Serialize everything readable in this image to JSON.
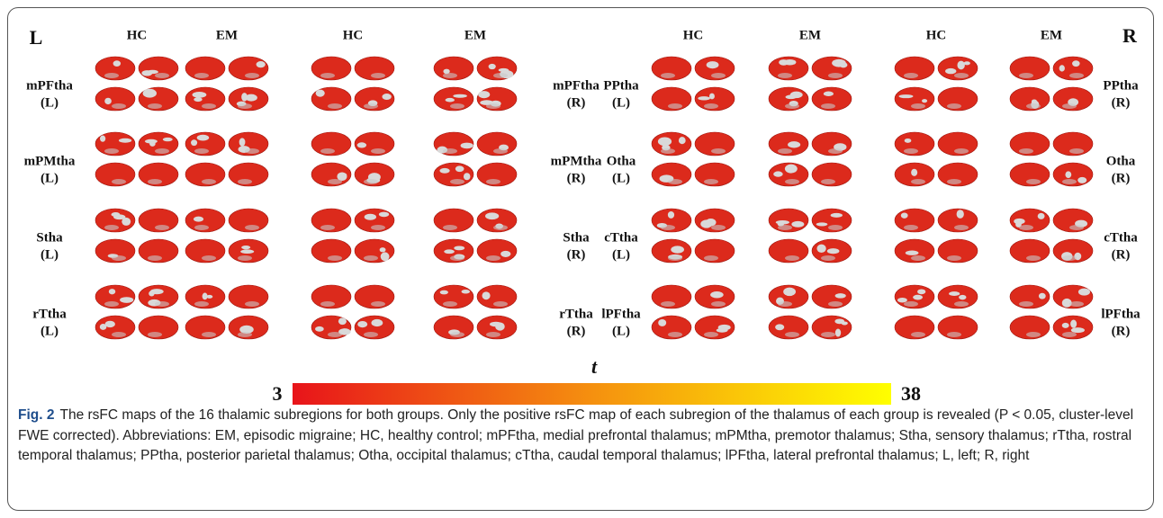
{
  "figure": {
    "side_labels": [
      "L",
      "R"
    ],
    "halves": [
      {
        "headers": [
          "HC",
          "EM",
          "HC",
          "EM"
        ],
        "rows": [
          {
            "left": [
              "mPFtha",
              "(L)"
            ],
            "right": [
              "mPFtha",
              "(R)"
            ]
          },
          {
            "left": [
              "mPMtha",
              "(L)"
            ],
            "right": [
              "mPMtha",
              "(R)"
            ]
          },
          {
            "left": [
              "Stha",
              "(L)"
            ],
            "right": [
              "Stha",
              "(R)"
            ]
          },
          {
            "left": [
              "rTtha",
              "(L)"
            ],
            "right": [
              "rTtha",
              "(R)"
            ]
          }
        ]
      },
      {
        "headers": [
          "HC",
          "EM",
          "HC",
          "EM"
        ],
        "rows": [
          {
            "left": [
              "PPtha",
              "(L)"
            ],
            "right": [
              "PPtha",
              "(R)"
            ]
          },
          {
            "left": [
              "Otha",
              "(L)"
            ],
            "right": [
              "Otha",
              "(R)"
            ]
          },
          {
            "left": [
              "cTtha",
              "(L)"
            ],
            "right": [
              "cTtha",
              "(R)"
            ]
          },
          {
            "left": [
              "lPFtha",
              "(L)"
            ],
            "right": [
              "lPFtha",
              "(R)"
            ]
          }
        ]
      }
    ],
    "colorbar": {
      "label": "t",
      "min": 3,
      "max": 38
    }
  },
  "caption": {
    "label": "Fig. 2",
    "text": "The rsFC maps of the 16 thalamic subregions for both groups. Only the positive rsFC map of each subregion of the thalamus of each group is revealed (P < 0.05, cluster-level FWE corrected). Abbreviations: EM, episodic migraine; HC, healthy control; mPFtha, medial prefrontal thalamus; mPMtha, premotor thalamus; Stha, sensory thalamus; rTtha, rostral temporal thalamus; PPtha, posterior parietal thalamus; Otha, occipital thalamus; cTtha, caudal temporal thalamus; lPFtha, lateral prefrontal thalamus; L, left; R, right"
  }
}
